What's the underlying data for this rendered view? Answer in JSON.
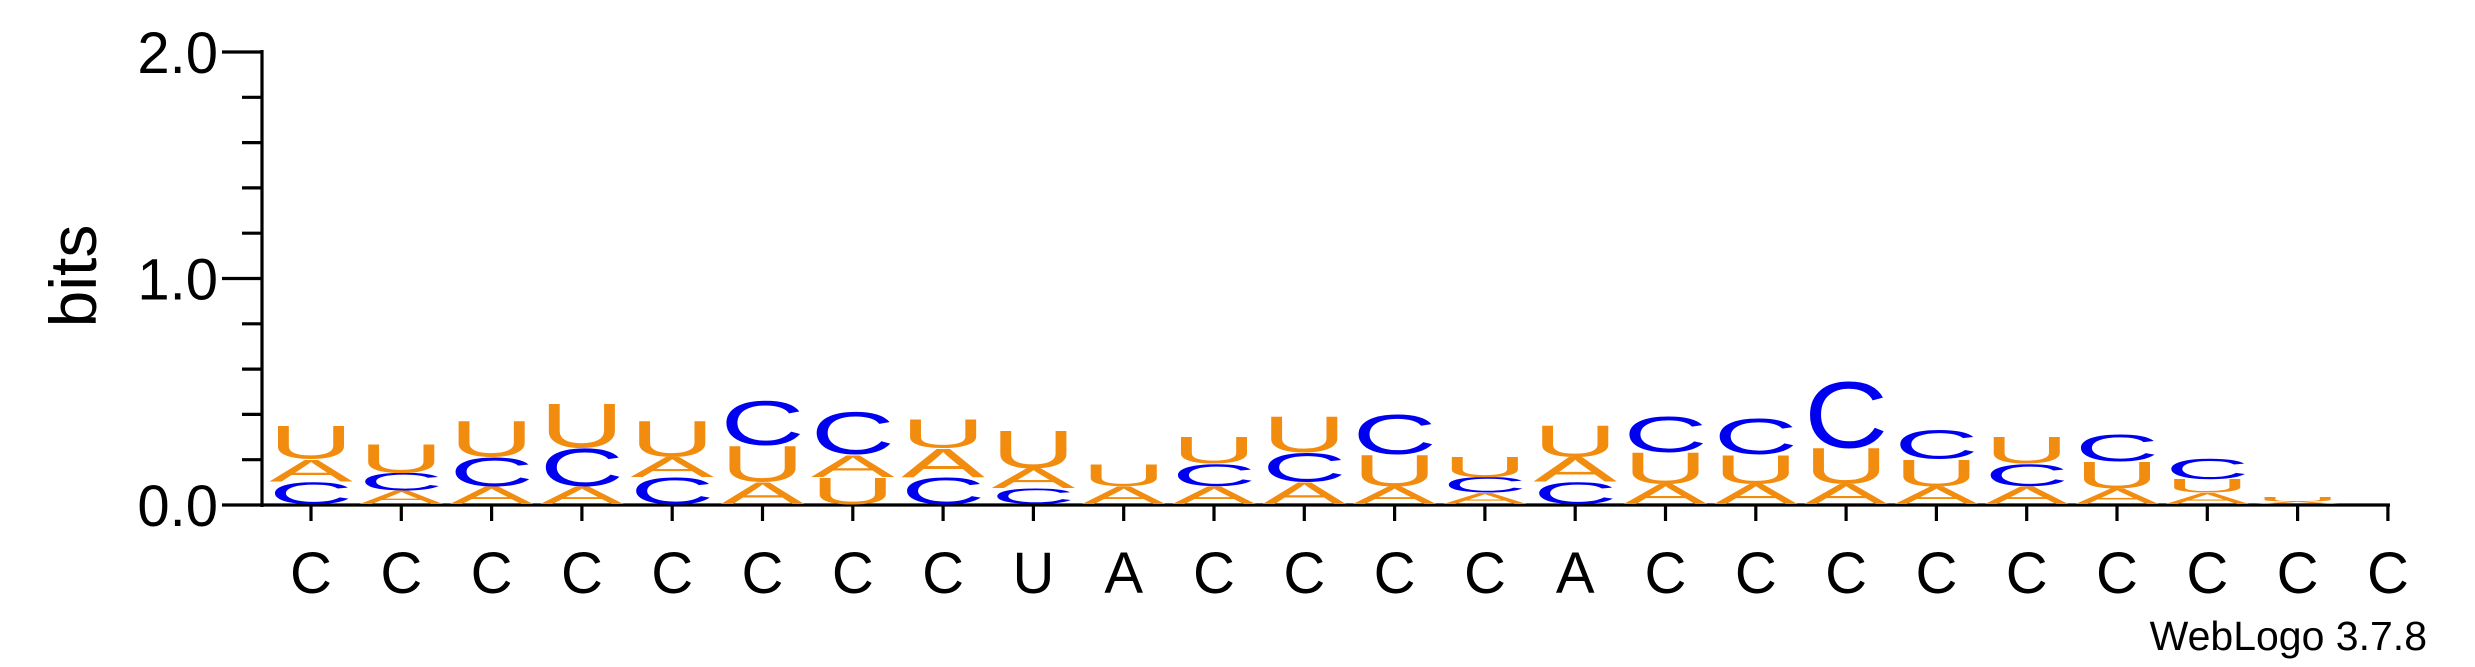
{
  "chart_data": {
    "type": "sequence-logo",
    "ylabel": "bits",
    "ylim": [
      0,
      2.0
    ],
    "yticks": [
      {
        "value": 0.0,
        "label": "0.0"
      },
      {
        "value": 1.0,
        "label": "1.0"
      },
      {
        "value": 2.0,
        "label": "2.0"
      }
    ],
    "credit": "WebLogo 3.7.8",
    "colors": {
      "A": "#f28c0f",
      "U": "#f28c0f",
      "C": "#0000f0",
      "G": "#0000f0"
    },
    "positions": [
      {
        "label": "C",
        "stack": [
          {
            "letter": "C",
            "bits": 0.1
          },
          {
            "letter": "A",
            "bits": 0.1
          },
          {
            "letter": "U",
            "bits": 0.15
          }
        ]
      },
      {
        "label": "C",
        "stack": [
          {
            "letter": "A",
            "bits": 0.06
          },
          {
            "letter": "C",
            "bits": 0.08
          },
          {
            "letter": "U",
            "bits": 0.13
          }
        ]
      },
      {
        "label": "C",
        "stack": [
          {
            "letter": "A",
            "bits": 0.08
          },
          {
            "letter": "C",
            "bits": 0.13
          },
          {
            "letter": "U",
            "bits": 0.16
          }
        ]
      },
      {
        "label": "C",
        "stack": [
          {
            "letter": "A",
            "bits": 0.08
          },
          {
            "letter": "C",
            "bits": 0.17
          },
          {
            "letter": "U",
            "bits": 0.2
          }
        ]
      },
      {
        "label": "C",
        "stack": [
          {
            "letter": "C",
            "bits": 0.12
          },
          {
            "letter": "A",
            "bits": 0.09
          },
          {
            "letter": "U",
            "bits": 0.16
          }
        ]
      },
      {
        "label": "C",
        "stack": [
          {
            "letter": "A",
            "bits": 0.1
          },
          {
            "letter": "U",
            "bits": 0.16
          },
          {
            "letter": "C",
            "bits": 0.2
          }
        ]
      },
      {
        "label": "C",
        "stack": [
          {
            "letter": "U",
            "bits": 0.12
          },
          {
            "letter": "A",
            "bits": 0.1
          },
          {
            "letter": "C",
            "bits": 0.19
          }
        ]
      },
      {
        "label": "C",
        "stack": [
          {
            "letter": "C",
            "bits": 0.12
          },
          {
            "letter": "A",
            "bits": 0.13
          },
          {
            "letter": "U",
            "bits": 0.13
          }
        ]
      },
      {
        "label": "U",
        "stack": [
          {
            "letter": "C",
            "bits": 0.07
          },
          {
            "letter": "A",
            "bits": 0.09
          },
          {
            "letter": "U",
            "bits": 0.17
          }
        ]
      },
      {
        "label": "A",
        "stack": [
          {
            "letter": "A",
            "bits": 0.08
          },
          {
            "letter": "U",
            "bits": 0.1
          }
        ]
      },
      {
        "label": "C",
        "stack": [
          {
            "letter": "A",
            "bits": 0.08
          },
          {
            "letter": "C",
            "bits": 0.1
          },
          {
            "letter": "U",
            "bits": 0.12
          }
        ]
      },
      {
        "label": "C",
        "stack": [
          {
            "letter": "A",
            "bits": 0.1
          },
          {
            "letter": "C",
            "bits": 0.13
          },
          {
            "letter": "U",
            "bits": 0.16
          }
        ]
      },
      {
        "label": "C",
        "stack": [
          {
            "letter": "A",
            "bits": 0.08
          },
          {
            "letter": "U",
            "bits": 0.14
          },
          {
            "letter": "C",
            "bits": 0.18
          }
        ]
      },
      {
        "label": "C",
        "stack": [
          {
            "letter": "A",
            "bits": 0.05
          },
          {
            "letter": "C",
            "bits": 0.07
          },
          {
            "letter": "U",
            "bits": 0.09
          }
        ]
      },
      {
        "label": "A",
        "stack": [
          {
            "letter": "C",
            "bits": 0.1
          },
          {
            "letter": "A",
            "bits": 0.11
          },
          {
            "letter": "U",
            "bits": 0.14
          }
        ]
      },
      {
        "label": "C",
        "stack": [
          {
            "letter": "A",
            "bits": 0.09
          },
          {
            "letter": "U",
            "bits": 0.14
          },
          {
            "letter": "C",
            "bits": 0.16
          }
        ]
      },
      {
        "label": "C",
        "stack": [
          {
            "letter": "A",
            "bits": 0.09
          },
          {
            "letter": "U",
            "bits": 0.13
          },
          {
            "letter": "C",
            "bits": 0.16
          }
        ]
      },
      {
        "label": "C",
        "stack": [
          {
            "letter": "A",
            "bits": 0.09
          },
          {
            "letter": "U",
            "bits": 0.16
          },
          {
            "letter": "C",
            "bits": 0.3
          }
        ]
      },
      {
        "label": "C",
        "stack": [
          {
            "letter": "A",
            "bits": 0.08
          },
          {
            "letter": "U",
            "bits": 0.12
          },
          {
            "letter": "C",
            "bits": 0.13
          }
        ]
      },
      {
        "label": "C",
        "stack": [
          {
            "letter": "A",
            "bits": 0.08
          },
          {
            "letter": "C",
            "bits": 0.1
          },
          {
            "letter": "U",
            "bits": 0.12
          }
        ]
      },
      {
        "label": "C",
        "stack": [
          {
            "letter": "A",
            "bits": 0.07
          },
          {
            "letter": "U",
            "bits": 0.12
          },
          {
            "letter": "C",
            "bits": 0.12
          }
        ]
      },
      {
        "label": "C",
        "stack": [
          {
            "letter": "A",
            "bits": 0.05
          },
          {
            "letter": "U",
            "bits": 0.06
          },
          {
            "letter": "C",
            "bits": 0.09
          }
        ]
      },
      {
        "label": "C",
        "stack": [
          {
            "letter": "A",
            "bits": 0.01
          },
          {
            "letter": "U",
            "bits": 0.02
          }
        ]
      },
      {
        "label": "C",
        "stack": []
      }
    ]
  }
}
